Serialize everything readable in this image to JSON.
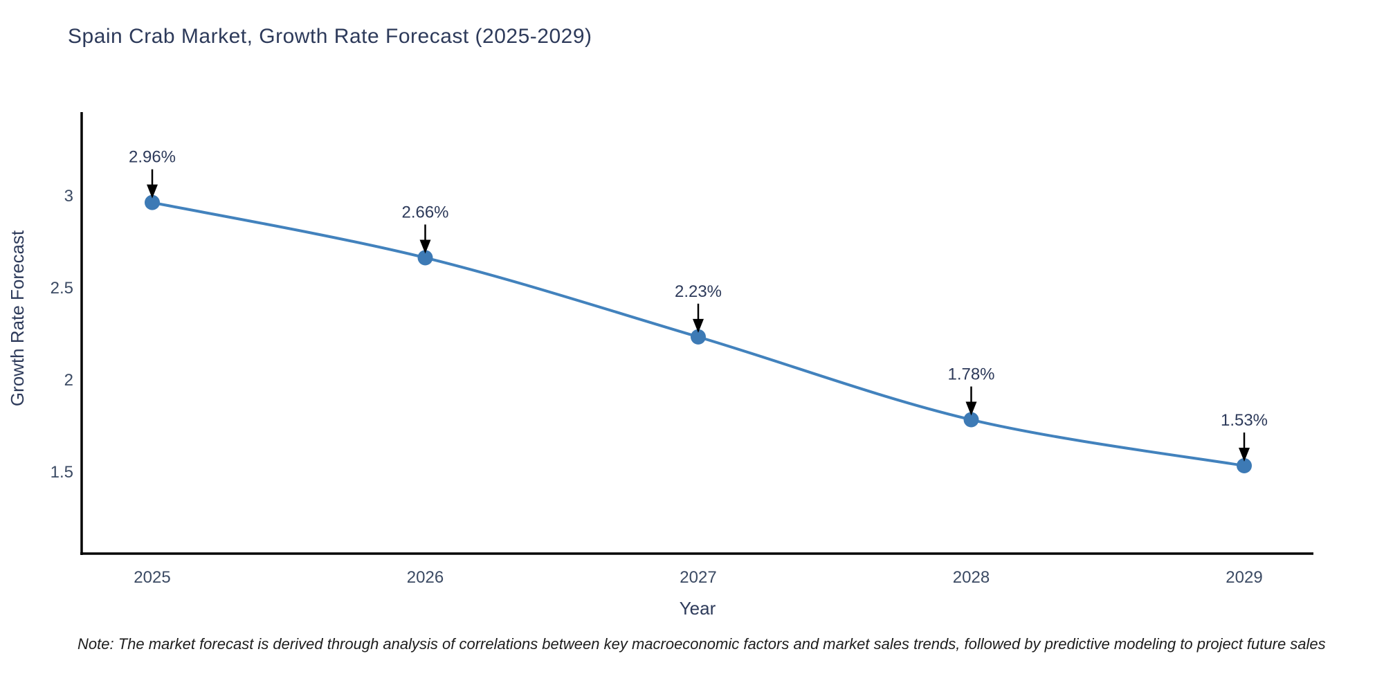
{
  "title": "Spain Crab Market, Growth Rate Forecast (2025-2029)",
  "note": "Note: The market forecast is derived through analysis of correlations between key macroeconomic factors and market sales trends, followed by predictive modeling to project future sales",
  "chart_data": {
    "type": "line",
    "title": "Spain Crab Market, Growth Rate Forecast (2025-2029)",
    "xlabel": "Year",
    "ylabel": "Growth Rate Forecast",
    "categories": [
      "2025",
      "2026",
      "2027",
      "2028",
      "2029"
    ],
    "series": [
      {
        "name": "Growth Rate Forecast",
        "values": [
          2.96,
          2.66,
          2.23,
          1.78,
          1.53
        ],
        "point_labels": [
          "2.96%",
          "2.66%",
          "2.23%",
          "1.78%",
          "1.53%"
        ]
      }
    ],
    "yticks": [
      3,
      2.5,
      2,
      1.5
    ],
    "ytick_labels": [
      "3",
      "2.5",
      "2",
      "1.5"
    ],
    "ylim": [
      1.05,
      3.45
    ],
    "grid": false,
    "legend_position": "none",
    "annotations_have_arrows": true,
    "colors": {
      "line": "#4282bd",
      "marker": "#3d7ab5",
      "axis": "#000000",
      "text": "#2d3a5a",
      "arrow": "#000000"
    }
  }
}
